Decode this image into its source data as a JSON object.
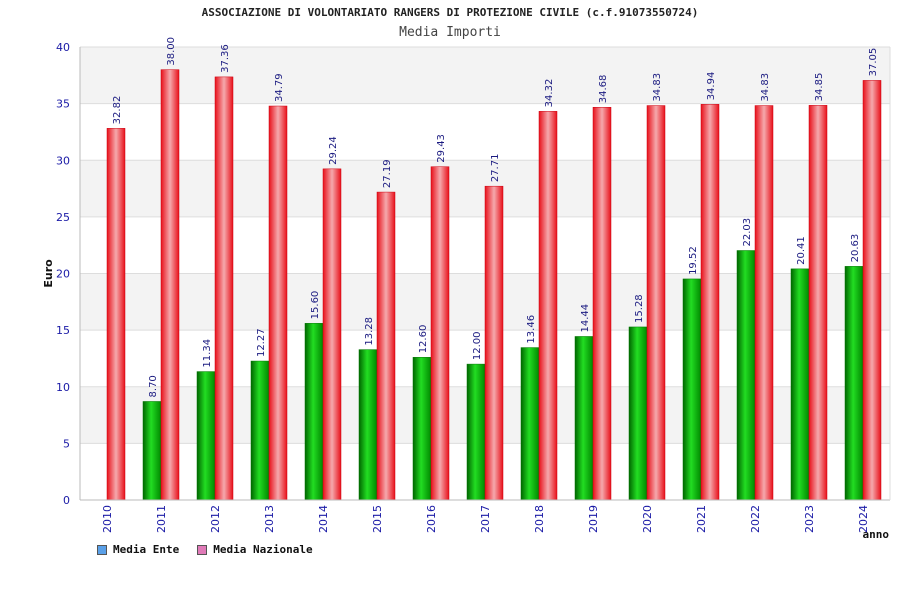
{
  "chart_data": {
    "type": "bar",
    "title": "ASSOCIAZIONE DI VOLONTARIATO RANGERS DI PROTEZIONE CIVILE (c.f.91073550724)",
    "subtitle": "Media Importi",
    "xlabel": "anno",
    "ylabel": "Euro",
    "ylim": [
      0,
      40
    ],
    "yticks": [
      0,
      5,
      10,
      15,
      20,
      25,
      30,
      35,
      40
    ],
    "categories": [
      "2010",
      "2011",
      "2012",
      "2013",
      "2014",
      "2015",
      "2016",
      "2017",
      "2018",
      "2019",
      "2020",
      "2021",
      "2022",
      "2023",
      "2024"
    ],
    "series": [
      {
        "name": "Media Ente",
        "color": "#00aa00",
        "legend_color": "#5aa0e8",
        "values": [
          null,
          8.7,
          11.34,
          12.27,
          15.6,
          13.28,
          12.6,
          12.0,
          13.46,
          14.44,
          15.28,
          19.52,
          22.03,
          20.41,
          20.63
        ],
        "labels": [
          "",
          "8.70",
          "11.34",
          "12.27",
          "15.60",
          "13.28",
          "12.60",
          "12.00",
          "13.46",
          "14.44",
          "15.28",
          "19.52",
          "22.03",
          "20.41",
          "20.63"
        ]
      },
      {
        "name": "Media Nazionale",
        "color": "#e8202a",
        "legend_color": "#e07ab8",
        "values": [
          32.82,
          38.0,
          37.36,
          34.79,
          29.24,
          27.19,
          29.43,
          27.71,
          34.32,
          34.68,
          34.83,
          34.94,
          34.83,
          34.85,
          37.05
        ],
        "labels": [
          "32.82",
          "38.00",
          "37.36",
          "34.79",
          "29.24",
          "27.19",
          "29.43",
          "27.71",
          "34.32",
          "34.68",
          "34.83",
          "34.94",
          "34.83",
          "34.85",
          "37.05"
        ]
      }
    ],
    "grid": true,
    "legend_position": "bottom-left"
  }
}
